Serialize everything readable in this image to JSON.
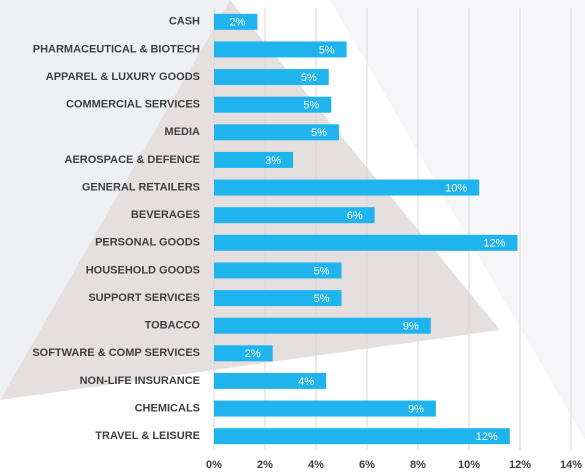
{
  "chart_data": {
    "type": "barh",
    "categories": [
      "CASH",
      "PHARMACEUTICAL & BIOTECH",
      "APPAREL & LUXURY GOODS",
      "COMMERCIAL SERVICES",
      "MEDIA",
      "AEROSPACE & DEFENCE",
      "GENERAL RETAILERS",
      "BEVERAGES",
      "PERSONAL GOODS",
      "HOUSEHOLD GOODS",
      "SUPPORT SERVICES",
      "TOBACCO",
      "SOFTWARE & COMP SERVICES",
      "NON-LIFE INSURANCE",
      "CHEMICALS",
      "TRAVEL & LEISURE"
    ],
    "values": [
      1.7,
      5.2,
      4.5,
      4.6,
      4.9,
      3.1,
      10.4,
      6.3,
      11.9,
      5.0,
      5.0,
      8.5,
      2.3,
      4.4,
      8.7,
      11.6
    ],
    "value_labels": [
      "2%",
      "5%",
      "5%",
      "5%",
      "5%",
      "3%",
      "10%",
      "6%",
      "12%",
      "5%",
      "5%",
      "9%",
      "2%",
      "4%",
      "9%",
      "12%"
    ],
    "color": "#1fb4ee",
    "xlim": [
      0,
      14
    ],
    "xticks": [
      {
        "value": 0,
        "label": "0%"
      },
      {
        "value": 2,
        "label": "2%"
      },
      {
        "value": 4,
        "label": "4%"
      },
      {
        "value": 6,
        "label": "6%"
      },
      {
        "value": 8,
        "label": "8%"
      },
      {
        "value": 10,
        "label": "10%"
      },
      {
        "value": 12,
        "label": "12%"
      },
      {
        "value": 14,
        "label": "14%"
      }
    ],
    "grid": true
  }
}
